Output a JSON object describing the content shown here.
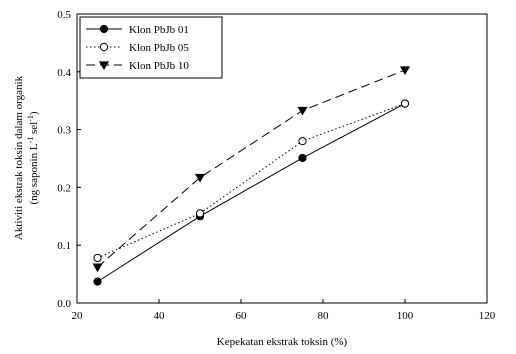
{
  "chart_data": {
    "type": "line",
    "xlabel": "Kepekatan ekstrak toksin (%)",
    "ylabel_line1": "Aktiviti ekstrak toksin dalam organik",
    "ylabel_line2": "(ng saponin L",
    "ylabel_sup1": "-1",
    "ylabel_mid": " sel",
    "ylabel_sup2": "-1",
    "ylabel_end": ")",
    "xlim": [
      20,
      120
    ],
    "ylim": [
      0.0,
      0.5
    ],
    "x_ticks": [
      20,
      40,
      60,
      80,
      100,
      120
    ],
    "y_ticks": [
      0.0,
      0.1,
      0.2,
      0.3,
      0.4,
      0.5
    ],
    "x_tick_labels": [
      "20",
      "40",
      "60",
      "80",
      "100",
      "120"
    ],
    "y_tick_labels": [
      "0.0",
      "0.1",
      "0.2",
      "0.3",
      "0.4",
      "0.5"
    ],
    "grid": false,
    "legend_position": "top-left",
    "series": [
      {
        "name": "Klon PbJb 01",
        "marker": "filled-circle",
        "line_style": "solid",
        "x": [
          25,
          50,
          75,
          100
        ],
        "y": [
          0.037,
          0.15,
          0.251,
          0.345
        ]
      },
      {
        "name": "Klon PbJb 05",
        "marker": "open-circle",
        "line_style": "dotted",
        "x": [
          25,
          50,
          75,
          100
        ],
        "y": [
          0.078,
          0.155,
          0.28,
          0.345
        ]
      },
      {
        "name": "Klon PbJb 10",
        "marker": "filled-triangle-down",
        "line_style": "dashed",
        "x": [
          25,
          50,
          75,
          100
        ],
        "y": [
          0.062,
          0.217,
          0.333,
          0.403
        ]
      }
    ]
  }
}
